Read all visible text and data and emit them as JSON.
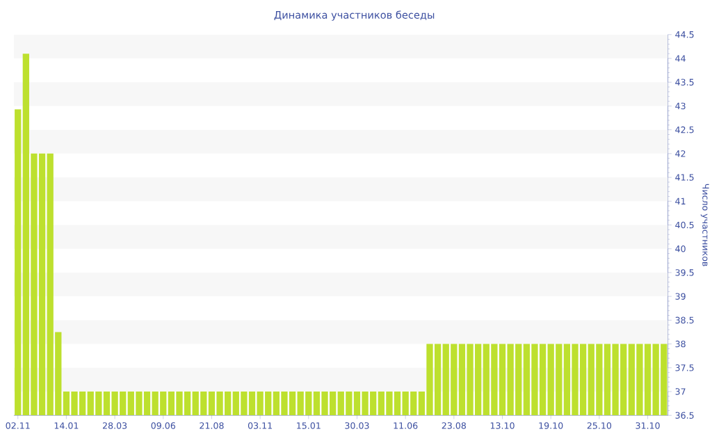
{
  "chart_data": {
    "type": "bar",
    "title": "Динамика участников беседы",
    "ylabel": "Число участников",
    "categories": [
      "02.11",
      null,
      null,
      null,
      null,
      null,
      "14.01",
      null,
      null,
      null,
      null,
      null,
      "28.03",
      null,
      null,
      null,
      null,
      null,
      "09.06",
      null,
      null,
      null,
      null,
      null,
      "21.08",
      null,
      null,
      null,
      null,
      null,
      "03.11",
      null,
      null,
      null,
      null,
      null,
      "15.01",
      null,
      null,
      null,
      null,
      null,
      "30.03",
      null,
      null,
      null,
      null,
      null,
      "11.06",
      null,
      null,
      null,
      null,
      null,
      "23.08",
      null,
      null,
      null,
      null,
      null,
      "13.10",
      null,
      null,
      null,
      null,
      null,
      "19.10",
      null,
      null,
      null,
      null,
      null,
      "25.10",
      null,
      null,
      null,
      null,
      null,
      "31.10",
      null,
      null
    ],
    "values": [
      42.93,
      44.1,
      42,
      42,
      42,
      38.25,
      37,
      37,
      37,
      37,
      37,
      37,
      37,
      37,
      37,
      37,
      37,
      37,
      37,
      37,
      37,
      37,
      37,
      37,
      37,
      37,
      37,
      37,
      37,
      37,
      37,
      37,
      37,
      37,
      37,
      37,
      37,
      37,
      37,
      37,
      37,
      37,
      37,
      37,
      37,
      37,
      37,
      37,
      37,
      37,
      37,
      38,
      38,
      38,
      38,
      38,
      38,
      38,
      38,
      38,
      38,
      38,
      38,
      38,
      38,
      38,
      38,
      38,
      38,
      38,
      38,
      38,
      38,
      38,
      38,
      38,
      38,
      38,
      38,
      38,
      38
    ],
    "color": "#bde02e",
    "ylim": [
      36.5,
      44.5
    ],
    "yticks": [
      36.5,
      37,
      37.5,
      38,
      38.5,
      39,
      39.5,
      40,
      40.5,
      41,
      41.5,
      42,
      42.5,
      43,
      43.5,
      44,
      44.5
    ],
    "bands": [
      {
        "axis": "y",
        "from": 37,
        "to": 37.5,
        "color": "#f7f7f7"
      },
      {
        "axis": "y",
        "from": 38,
        "to": 38.5,
        "color": "#f7f7f7"
      },
      {
        "axis": "y",
        "from": 39,
        "to": 39.5,
        "color": "#f7f7f7"
      },
      {
        "axis": "y",
        "from": 40,
        "to": 40.5,
        "color": "#f7f7f7"
      },
      {
        "axis": "y",
        "from": 41,
        "to": 41.5,
        "color": "#f7f7f7"
      },
      {
        "axis": "y",
        "from": 42,
        "to": 42.5,
        "color": "#f7f7f7"
      },
      {
        "axis": "y",
        "from": 43,
        "to": 43.5,
        "color": "#f7f7f7"
      },
      {
        "axis": "y",
        "from": 44,
        "to": 44.5,
        "color": "#f7f7f7"
      }
    ]
  }
}
